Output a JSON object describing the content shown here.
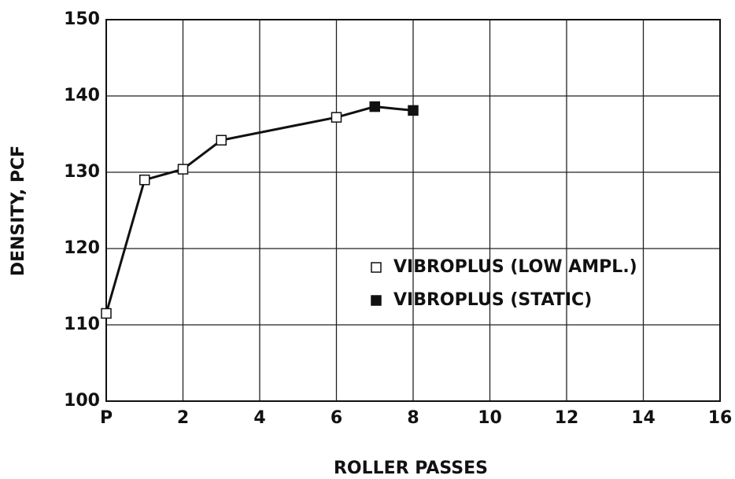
{
  "chart_data": {
    "type": "line",
    "xlabel": "ROLLER PASSES",
    "ylabel": "DENSITY, PCF",
    "series": [
      {
        "name": "VIBROPLUS (LOW AMPL.)",
        "color": "#111111",
        "marker": "open-square",
        "x": [
          0,
          1,
          2,
          3,
          6
        ],
        "values": [
          111.5,
          129,
          130.4,
          134.2,
          137.2
        ]
      },
      {
        "name": "VIBROPLUS (STATIC)",
        "color": "#111111",
        "marker": "filled-square",
        "x": [
          7,
          8
        ],
        "values": [
          138.6,
          138.1
        ]
      }
    ],
    "xlim": [
      0,
      16
    ],
    "xticks": [
      {
        "value": 0,
        "label": "P"
      },
      2,
      4,
      6,
      8,
      10,
      12,
      14,
      16
    ],
    "ylim": [
      100,
      150
    ],
    "yticks": [
      100,
      110,
      120,
      130,
      140,
      150
    ],
    "grid": true,
    "legend": "center-right"
  }
}
